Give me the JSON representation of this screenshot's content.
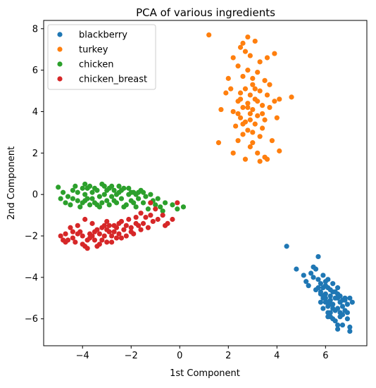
{
  "chart_data": {
    "type": "scatter",
    "title": "PCA of various ingredients",
    "xlabel": "1st Component",
    "ylabel": "2nd Component",
    "xlim": [
      -5.6,
      7.7
    ],
    "ylim": [
      -7.3,
      8.4
    ],
    "xticks": [
      -4,
      -2,
      0,
      2,
      4,
      6
    ],
    "yticks": [
      -6,
      -4,
      -2,
      0,
      2,
      4,
      6,
      8
    ],
    "grid": false,
    "legend_position": "top-left",
    "series": [
      {
        "name": "blackberry",
        "color": "#1f77b4",
        "points": [
          [
            4.4,
            -2.5
          ],
          [
            4.8,
            -3.6
          ],
          [
            5.1,
            -3.9
          ],
          [
            5.2,
            -4.2
          ],
          [
            5.3,
            -4.4
          ],
          [
            5.5,
            -3.5
          ],
          [
            5.6,
            -3.6
          ],
          [
            5.7,
            -3.0
          ],
          [
            5.5,
            -4.0
          ],
          [
            5.7,
            -4.1
          ],
          [
            5.8,
            -4.3
          ],
          [
            5.9,
            -4.5
          ],
          [
            5.6,
            -4.6
          ],
          [
            5.8,
            -4.7
          ],
          [
            6.0,
            -4.8
          ],
          [
            6.1,
            -4.5
          ],
          [
            6.2,
            -4.9
          ],
          [
            5.9,
            -5.0
          ],
          [
            6.0,
            -5.2
          ],
          [
            6.1,
            -5.4
          ],
          [
            6.2,
            -5.1
          ],
          [
            6.3,
            -5.3
          ],
          [
            6.4,
            -5.6
          ],
          [
            6.5,
            -5.0
          ],
          [
            6.3,
            -4.7
          ],
          [
            6.6,
            -5.2
          ],
          [
            6.5,
            -5.5
          ],
          [
            6.7,
            -5.8
          ],
          [
            6.2,
            -5.9
          ],
          [
            6.4,
            -6.1
          ],
          [
            6.1,
            -5.7
          ],
          [
            5.9,
            -5.5
          ],
          [
            5.8,
            -5.2
          ],
          [
            6.0,
            -4.4
          ],
          [
            6.2,
            -4.6
          ],
          [
            6.4,
            -4.7
          ],
          [
            6.6,
            -4.9
          ],
          [
            6.8,
            -5.1
          ],
          [
            6.9,
            -5.3
          ],
          [
            7.0,
            -5.0
          ],
          [
            7.1,
            -5.2
          ],
          [
            6.8,
            -5.6
          ],
          [
            6.6,
            -5.9
          ],
          [
            6.9,
            -6.0
          ],
          [
            6.5,
            -6.3
          ],
          [
            6.5,
            -6.5
          ],
          [
            6.7,
            -6.3
          ],
          [
            7.0,
            -6.4
          ],
          [
            7.0,
            -6.6
          ],
          [
            5.9,
            -3.9
          ],
          [
            6.1,
            -4.1
          ],
          [
            6.3,
            -4.3
          ],
          [
            6.5,
            -4.5
          ],
          [
            6.7,
            -5.4
          ],
          [
            6.0,
            -5.0
          ],
          [
            6.2,
            -5.3
          ],
          [
            5.8,
            -4.8
          ],
          [
            6.4,
            -5.0
          ],
          [
            6.6,
            -5.7
          ],
          [
            6.3,
            -6.0
          ],
          [
            6.8,
            -5.0
          ],
          [
            6.1,
            -5.9
          ],
          [
            6.9,
            -5.7
          ],
          [
            5.7,
            -4.5
          ],
          [
            6.0,
            -4.2
          ],
          [
            5.4,
            -3.8
          ],
          [
            6.3,
            -5.5
          ],
          [
            6.7,
            -5.1
          ],
          [
            6.5,
            -4.8
          ],
          [
            6.2,
            -5.7
          ],
          [
            5.9,
            -4.9
          ],
          [
            6.1,
            -5.2
          ]
        ]
      },
      {
        "name": "turkey",
        "color": "#ff7f0e",
        "points": [
          [
            1.2,
            7.7
          ],
          [
            2.6,
            7.3
          ],
          [
            2.8,
            7.6
          ],
          [
            3.1,
            7.4
          ],
          [
            2.5,
            7.1
          ],
          [
            2.7,
            6.9
          ],
          [
            2.9,
            6.7
          ],
          [
            3.6,
            6.6
          ],
          [
            2.2,
            6.6
          ],
          [
            3.3,
            6.4
          ],
          [
            3.9,
            6.8
          ],
          [
            2.4,
            6.2
          ],
          [
            2.8,
            6.0
          ],
          [
            3.2,
            5.9
          ],
          [
            2.6,
            5.7
          ],
          [
            3.5,
            5.5
          ],
          [
            2.0,
            5.6
          ],
          [
            3.0,
            5.3
          ],
          [
            2.7,
            5.1
          ],
          [
            3.3,
            5.0
          ],
          [
            2.5,
            4.9
          ],
          [
            2.9,
            4.8
          ],
          [
            3.6,
            4.8
          ],
          [
            1.9,
            4.9
          ],
          [
            3.1,
            4.6
          ],
          [
            2.4,
            4.5
          ],
          [
            2.8,
            4.4
          ],
          [
            3.4,
            4.3
          ],
          [
            2.6,
            4.2
          ],
          [
            3.0,
            4.1
          ],
          [
            3.7,
            4.2
          ],
          [
            2.2,
            4.0
          ],
          [
            2.9,
            3.9
          ],
          [
            3.2,
            3.8
          ],
          [
            2.5,
            3.7
          ],
          [
            3.5,
            3.6
          ],
          [
            2.7,
            3.5
          ],
          [
            3.1,
            3.4
          ],
          [
            2.3,
            3.3
          ],
          [
            3.4,
            3.2
          ],
          [
            2.8,
            3.1
          ],
          [
            3.0,
            3.0
          ],
          [
            2.6,
            2.9
          ],
          [
            3.3,
            2.8
          ],
          [
            2.4,
            2.6
          ],
          [
            3.0,
            2.5
          ],
          [
            3.8,
            2.6
          ],
          [
            1.6,
            2.5
          ],
          [
            2.9,
            2.3
          ],
          [
            3.2,
            2.0
          ],
          [
            2.2,
            2.0
          ],
          [
            3.5,
            1.8
          ],
          [
            2.7,
            1.7
          ],
          [
            3.3,
            1.6
          ],
          [
            3.6,
            1.7
          ],
          [
            2.4,
            3.9
          ],
          [
            3.9,
            4.5
          ],
          [
            4.1,
            4.6
          ],
          [
            4.6,
            4.7
          ],
          [
            1.7,
            4.1
          ],
          [
            4.0,
            3.7
          ],
          [
            4.1,
            2.1
          ],
          [
            3.7,
            5.3
          ],
          [
            2.1,
            5.1
          ],
          [
            3.0,
            5.6
          ],
          [
            2.8,
            4.2
          ],
          [
            3.2,
            4.5
          ],
          [
            2.6,
            3.4
          ],
          [
            3.4,
            3.9
          ],
          [
            2.5,
            4.6
          ],
          [
            3.1,
            5.1
          ],
          [
            2.9,
            3.6
          ]
        ]
      },
      {
        "name": "chicken",
        "color": "#2ca02c",
        "points": [
          [
            -5.0,
            0.35
          ],
          [
            -4.8,
            0.1
          ],
          [
            -4.6,
            -0.1
          ],
          [
            -4.4,
            0.2
          ],
          [
            -4.2,
            -0.3
          ],
          [
            -4.0,
            0.3
          ],
          [
            -3.9,
            0.0
          ],
          [
            -3.8,
            -0.2
          ],
          [
            -3.7,
            0.4
          ],
          [
            -3.6,
            0.1
          ],
          [
            -3.5,
            -0.4
          ],
          [
            -3.4,
            0.2
          ],
          [
            -3.3,
            -0.1
          ],
          [
            -3.2,
            0.5
          ],
          [
            -3.1,
            0.0
          ],
          [
            -3.0,
            -0.3
          ],
          [
            -2.9,
            0.3
          ],
          [
            -2.8,
            -0.1
          ],
          [
            -2.7,
            0.2
          ],
          [
            -2.6,
            -0.4
          ],
          [
            -2.5,
            0.1
          ],
          [
            -2.4,
            -0.2
          ],
          [
            -2.3,
            0.3
          ],
          [
            -2.2,
            -0.5
          ],
          [
            -2.1,
            0.0
          ],
          [
            -2.0,
            -0.3
          ],
          [
            -1.9,
            0.1
          ],
          [
            -1.8,
            -0.6
          ],
          [
            -1.7,
            -0.2
          ],
          [
            -1.6,
            0.2
          ],
          [
            -1.5,
            -0.4
          ],
          [
            -1.4,
            -0.1
          ],
          [
            -1.3,
            -0.7
          ],
          [
            -1.2,
            0.0
          ],
          [
            -1.1,
            -0.3
          ],
          [
            -1.0,
            -0.5
          ],
          [
            -0.9,
            -0.2
          ],
          [
            -0.8,
            -0.6
          ],
          [
            -0.6,
            -0.4
          ],
          [
            -0.3,
            -0.5
          ],
          [
            -0.1,
            -0.7
          ],
          [
            0.15,
            -0.6
          ],
          [
            -4.5,
            -0.5
          ],
          [
            -4.3,
            0.4
          ],
          [
            -4.1,
            -0.6
          ],
          [
            -3.9,
            0.5
          ],
          [
            -3.7,
            -0.5
          ],
          [
            -3.5,
            0.3
          ],
          [
            -3.3,
            -0.6
          ],
          [
            -3.1,
            0.4
          ],
          [
            -2.9,
            -0.5
          ],
          [
            -2.7,
            -0.3
          ],
          [
            -2.5,
            0.4
          ],
          [
            -2.3,
            -0.6
          ],
          [
            -2.1,
            0.3
          ],
          [
            -1.9,
            -0.4
          ],
          [
            -1.7,
            0.1
          ],
          [
            -4.7,
            -0.4
          ],
          [
            -4.9,
            -0.2
          ],
          [
            -4.2,
            0.1
          ],
          [
            -3.6,
            -0.2
          ],
          [
            -3.0,
            0.2
          ],
          [
            -2.6,
            0.0
          ],
          [
            -2.0,
            0.1
          ],
          [
            -1.5,
            0.1
          ],
          [
            -3.8,
            0.3
          ],
          [
            -3.2,
            -0.4
          ],
          [
            -2.8,
            0.4
          ],
          [
            -4.0,
            -0.4
          ],
          [
            -1.2,
            -0.4
          ],
          [
            -0.7,
            -0.8
          ],
          [
            -3.4,
            -0.5
          ],
          [
            -2.4,
            0.2
          ],
          [
            -1.8,
            0.0
          ],
          [
            -4.4,
            -0.2
          ],
          [
            -3.9,
            -0.3
          ]
        ]
      },
      {
        "name": "chicken_breast",
        "color": "#d62728",
        "points": [
          [
            -4.9,
            -2.0
          ],
          [
            -4.8,
            -2.2
          ],
          [
            -4.7,
            -1.9
          ],
          [
            -4.5,
            -1.6
          ],
          [
            -4.4,
            -2.1
          ],
          [
            -4.3,
            -2.3
          ],
          [
            -4.2,
            -1.5
          ],
          [
            -4.1,
            -1.8
          ],
          [
            -4.0,
            -2.0
          ],
          [
            -3.9,
            -2.5
          ],
          [
            -3.8,
            -2.6
          ],
          [
            -3.7,
            -1.9
          ],
          [
            -3.6,
            -1.4
          ],
          [
            -3.5,
            -2.2
          ],
          [
            -3.4,
            -1.7
          ],
          [
            -3.3,
            -2.4
          ],
          [
            -3.2,
            -1.6
          ],
          [
            -3.1,
            -2.0
          ],
          [
            -3.0,
            -1.3
          ],
          [
            -2.9,
            -1.8
          ],
          [
            -2.8,
            -2.3
          ],
          [
            -2.7,
            -1.5
          ],
          [
            -2.6,
            -2.1
          ],
          [
            -2.5,
            -1.9
          ],
          [
            -2.4,
            -1.3
          ],
          [
            -2.3,
            -1.7
          ],
          [
            -2.2,
            -2.0
          ],
          [
            -2.1,
            -1.2
          ],
          [
            -2.0,
            -1.6
          ],
          [
            -1.9,
            -1.9
          ],
          [
            -1.8,
            -1.1
          ],
          [
            -1.7,
            -1.5
          ],
          [
            -1.6,
            -0.9
          ],
          [
            -1.5,
            -1.4
          ],
          [
            -1.4,
            -1.1
          ],
          [
            -1.3,
            -1.6
          ],
          [
            -1.2,
            -1.0
          ],
          [
            -1.1,
            -1.3
          ],
          [
            -1.0,
            -0.7
          ],
          [
            -0.9,
            -1.2
          ],
          [
            -0.7,
            -1.0
          ],
          [
            -0.6,
            -1.5
          ],
          [
            -0.5,
            -1.4
          ],
          [
            -0.3,
            -1.2
          ],
          [
            -0.1,
            -0.4
          ],
          [
            -1.2,
            -0.4
          ],
          [
            -4.6,
            -2.2
          ],
          [
            -4.4,
            -1.8
          ],
          [
            -4.0,
            -2.4
          ],
          [
            -3.8,
            -2.2
          ],
          [
            -3.6,
            -2.0
          ],
          [
            -3.4,
            -2.5
          ],
          [
            -3.2,
            -2.2
          ],
          [
            -3.0,
            -1.7
          ],
          [
            -2.8,
            -2.0
          ],
          [
            -2.6,
            -1.6
          ],
          [
            -2.4,
            -2.1
          ],
          [
            -2.2,
            -1.5
          ],
          [
            -2.0,
            -1.8
          ],
          [
            -1.8,
            -1.4
          ],
          [
            -3.9,
            -1.2
          ],
          [
            -3.5,
            -1.8
          ],
          [
            -3.0,
            -2.3
          ],
          [
            -2.5,
            -1.4
          ],
          [
            -4.2,
            -1.9
          ],
          [
            -3.3,
            -1.9
          ],
          [
            -2.7,
            -1.8
          ],
          [
            -4.7,
            -2.3
          ],
          [
            -3.7,
            -2.1
          ],
          [
            -2.9,
            -1.5
          ],
          [
            -1.6,
            -1.7
          ],
          [
            -3.1,
            -1.5
          ]
        ]
      }
    ]
  }
}
